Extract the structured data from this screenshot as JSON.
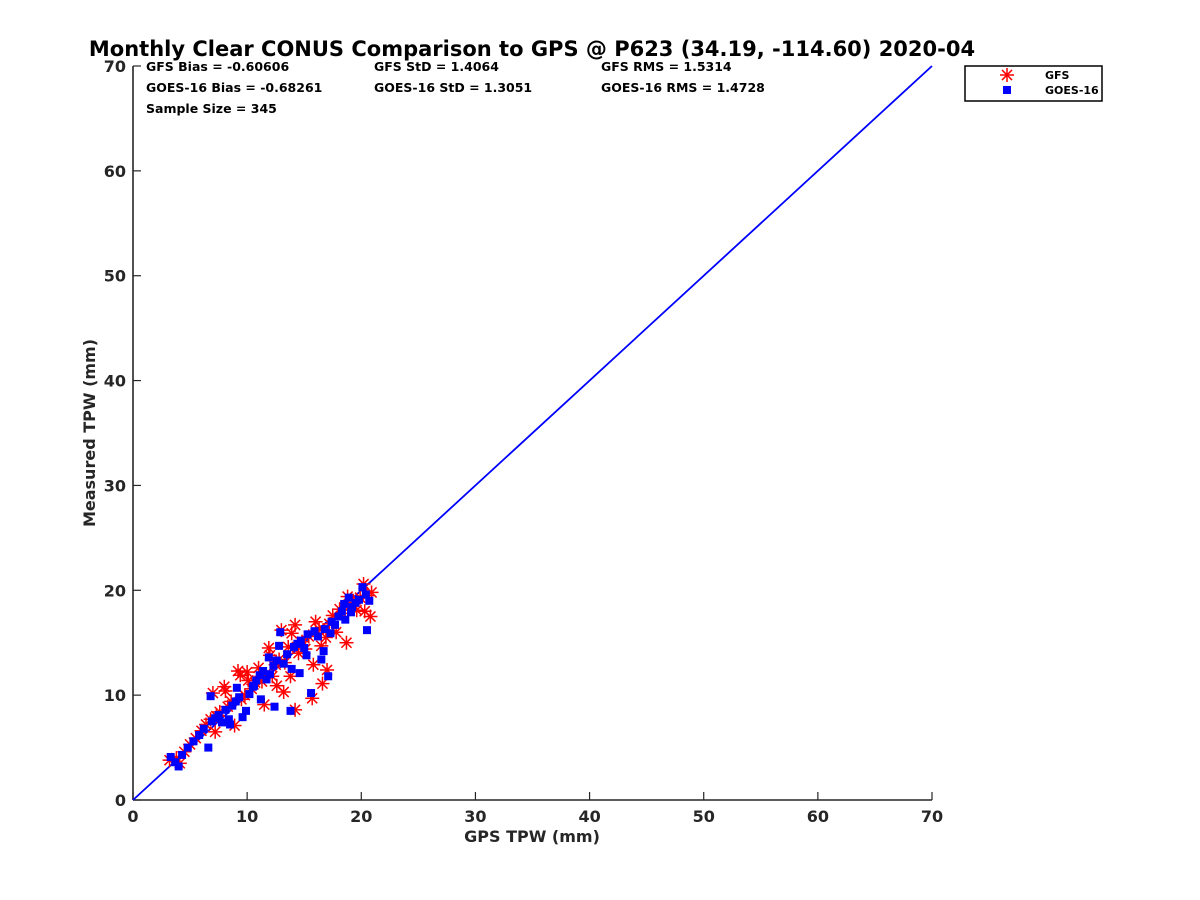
{
  "chart_data": {
    "type": "scatter",
    "title": "Monthly Clear CONUS Comparison to GPS @ P623 (34.19, -114.60) 2020-04",
    "xlabel": "GPS TPW (mm)",
    "ylabel": "Measured TPW (mm)",
    "xlim": [
      0,
      70
    ],
    "ylim": [
      0,
      70
    ],
    "xticks": [
      0,
      10,
      20,
      30,
      40,
      50,
      60,
      70
    ],
    "yticks": [
      0,
      10,
      20,
      30,
      40,
      50,
      60,
      70
    ],
    "grid": false,
    "legend_position": "top-right outside",
    "stats": [
      "GFS Bias = -0.60606",
      "GFS StD = 1.4064",
      "GFS RMS = 1.5314",
      "GOES-16 Bias = -0.68261",
      "GOES-16 StD = 1.3051",
      "GOES-16 RMS = 1.4728",
      "Sample Size = 345"
    ],
    "reference_line": {
      "x": [
        0,
        70
      ],
      "y": [
        0,
        70
      ],
      "color": "#0000ff"
    },
    "series": [
      {
        "name": "GFS",
        "marker": "asterisk",
        "color": "#ff0000",
        "x": [
          3.2,
          3.8,
          4.1,
          4.5,
          5.0,
          5.5,
          6.0,
          6.4,
          6.8,
          7.0,
          7.3,
          7.6,
          8.0,
          8.3,
          8.6,
          8.9,
          9.2,
          9.5,
          9.8,
          10.1,
          10.4,
          10.7,
          11.0,
          11.3,
          11.6,
          11.9,
          12.2,
          12.5,
          12.8,
          13.0,
          13.3,
          13.6,
          13.9,
          14.2,
          14.5,
          14.8,
          15.1,
          15.4,
          15.7,
          16.0,
          16.3,
          16.6,
          16.9,
          17.2,
          17.5,
          17.8,
          18.1,
          18.4,
          18.7,
          19.0,
          19.3,
          19.6,
          19.9,
          20.2,
          20.5,
          20.8,
          7.2,
          8.1,
          9.4,
          12.0,
          13.2,
          14.2,
          15.8,
          16.5,
          17.0,
          18.8,
          11.5,
          12.6,
          10.0,
          20.3,
          20.9,
          13.8
        ],
        "y": [
          3.8,
          4.0,
          3.5,
          4.6,
          5.3,
          5.9,
          6.6,
          7.2,
          7.7,
          10.2,
          8.0,
          8.4,
          10.8,
          8.9,
          9.4,
          7.1,
          12.3,
          9.6,
          10.0,
          11.4,
          10.6,
          11.2,
          12.6,
          11.3,
          12.0,
          14.5,
          11.8,
          12.9,
          13.4,
          16.2,
          13.1,
          14.6,
          15.9,
          16.7,
          14.0,
          15.1,
          14.4,
          15.6,
          9.7,
          17.0,
          16.3,
          11.1,
          15.5,
          16.8,
          17.6,
          16.0,
          18.2,
          17.8,
          15.0,
          18.5,
          19.0,
          18.1,
          19.3,
          20.6,
          19.5,
          17.5,
          6.5,
          10.4,
          11.9,
          13.8,
          10.3,
          8.6,
          12.9,
          14.7,
          12.4,
          19.4,
          9.1,
          10.9,
          12.2,
          18.0,
          19.8,
          11.8
        ]
      },
      {
        "name": "GOES-16",
        "marker": "square",
        "color": "#0000ff",
        "x": [
          3.3,
          3.7,
          4.0,
          4.3,
          4.8,
          5.3,
          5.8,
          6.2,
          6.6,
          6.9,
          7.2,
          7.5,
          7.8,
          8.1,
          8.4,
          8.7,
          9.0,
          9.3,
          9.6,
          9.9,
          10.2,
          10.5,
          10.8,
          11.1,
          11.4,
          11.7,
          12.0,
          12.3,
          12.6,
          12.9,
          13.2,
          13.5,
          13.8,
          14.1,
          14.4,
          14.7,
          15.0,
          15.3,
          15.6,
          15.9,
          16.2,
          16.5,
          16.8,
          17.1,
          17.4,
          17.7,
          18.0,
          18.3,
          18.6,
          18.9,
          19.2,
          19.5,
          19.8,
          20.1,
          20.4,
          20.7,
          6.8,
          8.5,
          9.1,
          11.9,
          12.4,
          13.9,
          15.2,
          16.7,
          17.3,
          18.5,
          12.8,
          10.6,
          14.6,
          20.5,
          19.1,
          11.2
        ],
        "y": [
          4.1,
          3.6,
          3.2,
          4.3,
          5.0,
          5.6,
          6.2,
          6.8,
          5.0,
          7.5,
          7.8,
          8.1,
          7.4,
          8.6,
          7.7,
          9.0,
          9.4,
          9.8,
          7.9,
          8.5,
          10.1,
          10.8,
          11.4,
          11.9,
          12.3,
          11.5,
          12.0,
          12.8,
          13.3,
          16.0,
          13.0,
          13.9,
          8.5,
          14.6,
          14.9,
          15.2,
          14.5,
          15.8,
          10.2,
          16.1,
          15.6,
          13.4,
          16.3,
          11.8,
          17.0,
          16.7,
          17.5,
          18.0,
          17.2,
          19.3,
          18.4,
          18.8,
          19.1,
          20.3,
          19.6,
          19.0,
          9.9,
          7.2,
          10.7,
          13.6,
          8.9,
          12.5,
          13.8,
          14.2,
          15.9,
          18.7,
          14.7,
          10.9,
          12.1,
          16.2,
          17.9,
          9.6
        ]
      }
    ]
  }
}
